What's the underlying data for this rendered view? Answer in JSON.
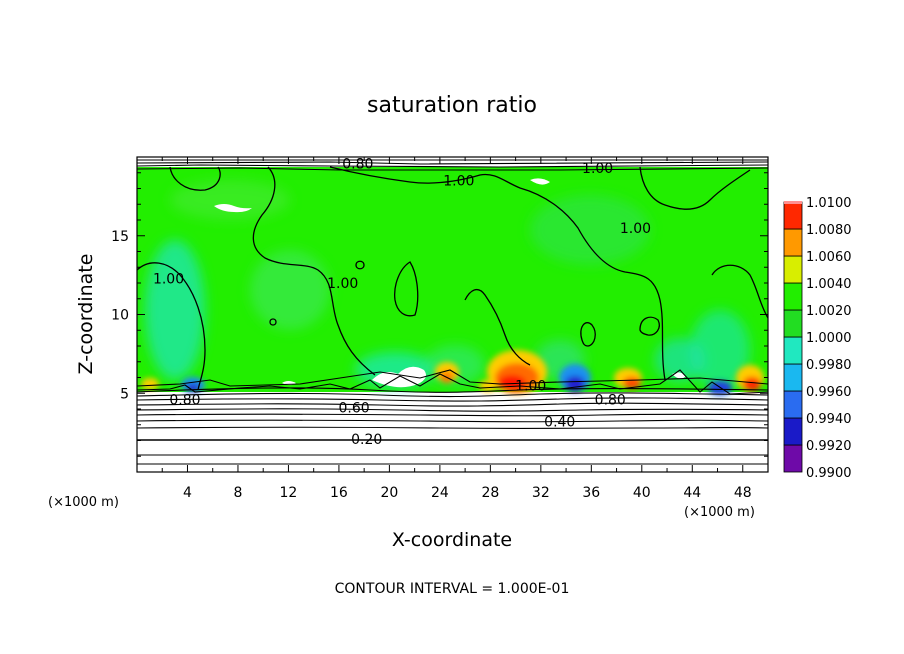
{
  "chart_data": {
    "type": "heatmap",
    "title": "saturation ratio",
    "xlabel": "X-coordinate",
    "ylabel": "Z-coordinate",
    "x_unit": "(×1000 m)",
    "x_unit_right": "(×1000 m)",
    "xlim": [
      0,
      50
    ],
    "ylim": [
      0,
      20
    ],
    "x_ticks": [
      4,
      8,
      12,
      16,
      20,
      24,
      28,
      32,
      36,
      40,
      44,
      48
    ],
    "y_ticks": [
      5,
      10,
      15
    ],
    "colorbar": {
      "levels": [
        "0.9900",
        "0.9920",
        "0.9940",
        "0.9960",
        "0.9980",
        "1.0000",
        "1.0020",
        "1.0040",
        "1.0060",
        "1.0080",
        "1.0100"
      ],
      "colors": [
        "#6e0aa8",
        "#1a1ac8",
        "#2a6cf0",
        "#1ab8f0",
        "#20e8c0",
        "#22dd22",
        "#22ee00",
        "#d8ee00",
        "#ff9900",
        "#ff2800",
        "#ff9090"
      ]
    },
    "contour_labels": [
      {
        "text": "0.80",
        "x": 17.5,
        "z": 19.6
      },
      {
        "text": "1.00",
        "x": 25.5,
        "z": 18.5
      },
      {
        "text": "1.00",
        "x": 36.5,
        "z": 19.3
      },
      {
        "text": "1.00",
        "x": 39.5,
        "z": 15.5
      },
      {
        "text": "1.00",
        "x": 2.5,
        "z": 12.3
      },
      {
        "text": "1.00",
        "x": 16.3,
        "z": 12.0
      },
      {
        "text": "1.00",
        "x": 31.2,
        "z": 5.5
      },
      {
        "text": "0.80",
        "x": 3.8,
        "z": 4.6
      },
      {
        "text": "0.60",
        "x": 17.2,
        "z": 4.1
      },
      {
        "text": "0.80",
        "x": 37.5,
        "z": 4.6
      },
      {
        "text": "0.40",
        "x": 33.5,
        "z": 3.2
      },
      {
        "text": "0.20",
        "x": 18.2,
        "z": 2.1
      }
    ],
    "footer": "CONTOUR INTERVAL = 1.000E-01"
  }
}
